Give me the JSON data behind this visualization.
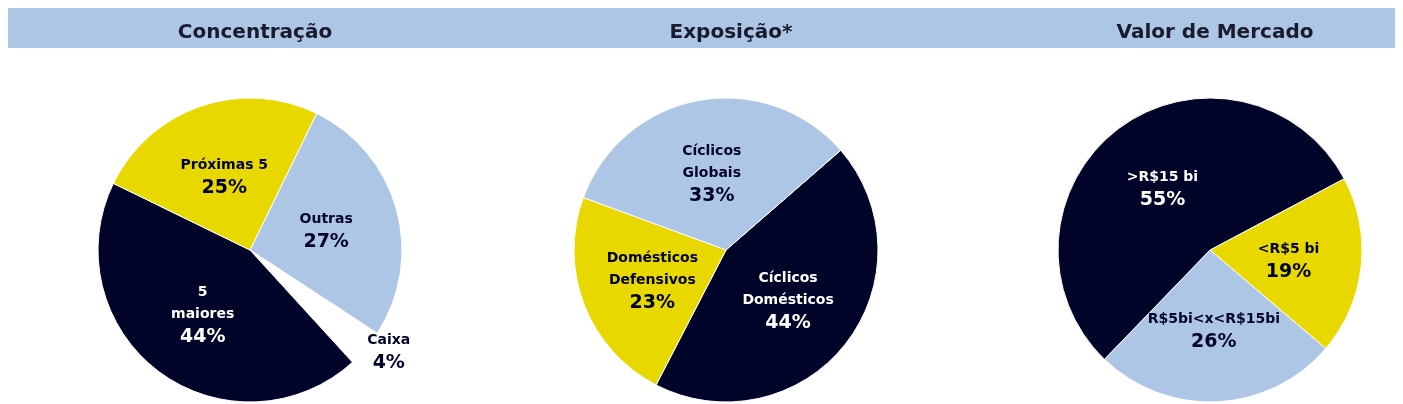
{
  "chart_data": [
    {
      "type": "pie",
      "title": "Concentração",
      "categories": [
        "Outras",
        "Caixa",
        "5 maiores",
        "Próximas 5"
      ],
      "values": [
        27,
        4,
        44,
        25
      ],
      "value_labels": [
        "27%",
        "4%",
        "44%",
        "25%"
      ],
      "colors": [
        "#adc6e5",
        "#ffffff",
        "#000428",
        "#e8d800"
      ],
      "legend": false
    },
    {
      "type": "pie",
      "title": "Exposição*",
      "categories": [
        "Cíclicos Domésticos",
        "Domésticos Defensivos",
        "Cíclicos Globais"
      ],
      "values": [
        44,
        23,
        33
      ],
      "value_labels": [
        "44%",
        "23%",
        "33%"
      ],
      "colors": [
        "#000428",
        "#e8d800",
        "#adc6e5"
      ],
      "legend": false
    },
    {
      "type": "pie",
      "title": "Valor de Mercado",
      "categories": [
        "<R$5 bi",
        "R$5bi<x<R$15bi",
        ">R$15 bi"
      ],
      "values": [
        19,
        26,
        55
      ],
      "value_labels": [
        "19%",
        "26%",
        "55%"
      ],
      "colors": [
        "#e8d800",
        "#adc6e5",
        "#000428"
      ],
      "legend": false
    }
  ]
}
